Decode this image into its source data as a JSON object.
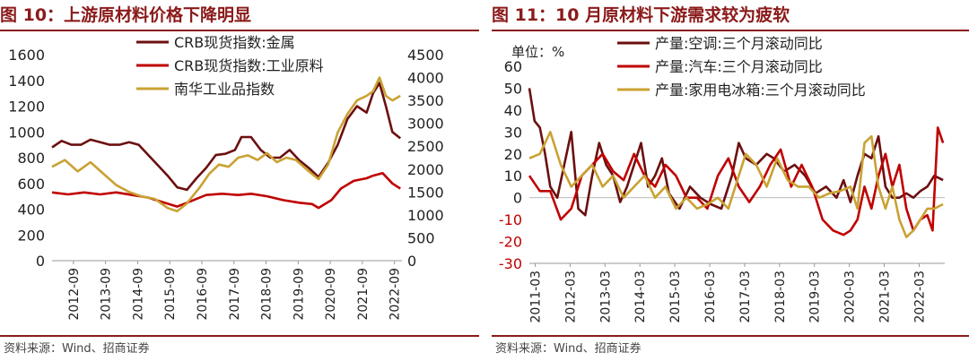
{
  "chart_data": [
    {
      "type": "line",
      "title": "图 10：上游原材料价格下降明显",
      "source": "资料来源：Wind、招商证券",
      "categories": [
        "2012-09",
        "2013-09",
        "2014-09",
        "2015-09",
        "2016-09",
        "2017-09",
        "2018-09",
        "2019-09",
        "2020-09",
        "2021-09",
        "2022-09"
      ],
      "x_range": [
        2012.0,
        2022.9
      ],
      "y_left": {
        "range": [
          0,
          1600
        ],
        "ticks": [
          "0",
          "200",
          "400",
          "600",
          "800",
          "1000",
          "1200",
          "1400",
          "1600"
        ]
      },
      "y_right": {
        "range": [
          0,
          4500
        ],
        "ticks": [
          "0",
          "500",
          "1000",
          "1500",
          "2000",
          "2500",
          "3000",
          "3500",
          "4000",
          "4500"
        ]
      },
      "legend_position": "top-center",
      "series": [
        {
          "name": "CRB现货指数:金属",
          "axis": "left",
          "color": "#6b0f0f",
          "x": [
            2012.0,
            2012.3,
            2012.6,
            2012.9,
            2013.2,
            2013.5,
            2013.8,
            2014.1,
            2014.4,
            2014.7,
            2015.0,
            2015.3,
            2015.6,
            2015.9,
            2016.2,
            2016.5,
            2016.8,
            2017.1,
            2017.4,
            2017.7,
            2017.9,
            2018.2,
            2018.5,
            2018.8,
            2019.1,
            2019.4,
            2019.7,
            2020.0,
            2020.3,
            2020.6,
            2020.9,
            2021.2,
            2021.5,
            2021.8,
            2022.0,
            2022.2,
            2022.4,
            2022.6,
            2022.85
          ],
          "values": [
            880,
            930,
            900,
            900,
            940,
            920,
            900,
            900,
            920,
            900,
            820,
            740,
            660,
            570,
            550,
            640,
            720,
            820,
            830,
            860,
            960,
            960,
            860,
            800,
            800,
            860,
            780,
            720,
            650,
            760,
            900,
            1100,
            1200,
            1150,
            1300,
            1380,
            1200,
            1000,
            950
          ]
        },
        {
          "name": "CRB现货指数:工业原料",
          "axis": "left",
          "color": "#c00000",
          "x": [
            2012.0,
            2012.5,
            2013.0,
            2013.5,
            2014.0,
            2014.5,
            2015.0,
            2015.5,
            2015.9,
            2016.3,
            2016.8,
            2017.3,
            2017.8,
            2018.2,
            2018.7,
            2019.2,
            2019.7,
            2020.1,
            2020.3,
            2020.7,
            2021.0,
            2021.4,
            2021.8,
            2022.0,
            2022.3,
            2022.6,
            2022.85
          ],
          "values": [
            530,
            515,
            530,
            515,
            530,
            510,
            490,
            450,
            420,
            460,
            510,
            520,
            510,
            520,
            500,
            470,
            450,
            440,
            410,
            470,
            560,
            620,
            640,
            660,
            680,
            600,
            560
          ]
        },
        {
          "name": "南华工业品指数",
          "axis": "right",
          "color": "#c9a233",
          "x": [
            2012.0,
            2012.4,
            2012.8,
            2013.2,
            2013.6,
            2014.0,
            2014.4,
            2014.8,
            2015.2,
            2015.6,
            2015.9,
            2016.2,
            2016.6,
            2016.9,
            2017.2,
            2017.5,
            2017.8,
            2018.1,
            2018.4,
            2018.7,
            2019.0,
            2019.3,
            2019.6,
            2020.0,
            2020.3,
            2020.6,
            2020.9,
            2021.2,
            2021.5,
            2021.8,
            2022.0,
            2022.2,
            2022.4,
            2022.6,
            2022.85
          ],
          "values": [
            2050,
            2200,
            1950,
            2150,
            1900,
            1650,
            1500,
            1400,
            1350,
            1150,
            1080,
            1250,
            1600,
            1900,
            2100,
            2050,
            2250,
            2300,
            2200,
            2350,
            2150,
            2250,
            2200,
            1950,
            1780,
            2100,
            2800,
            3200,
            3500,
            3600,
            3700,
            4000,
            3600,
            3500,
            3600
          ]
        }
      ]
    },
    {
      "type": "line",
      "title": "图 11：10 月原材料下游需求较为疲软",
      "source": "资料来源：Wind、招商证券",
      "unit_label": "单位：%",
      "categories": [
        "2011-03",
        "2012-03",
        "2013-03",
        "2014-03",
        "2015-03",
        "2016-03",
        "2017-03",
        "2018-03",
        "2019-03",
        "2020-03",
        "2021-03",
        "2022-03"
      ],
      "x_range": [
        2011.0,
        2022.9
      ],
      "y_left": {
        "range": [
          -30,
          60
        ],
        "ticks": [
          "-30",
          "-20",
          "-10",
          "0",
          "10",
          "20",
          "30",
          "40",
          "50",
          "60"
        ]
      },
      "legend_position": "top-center",
      "series": [
        {
          "name": "产量:空调:三个月滚动同比",
          "color": "#6b0f0f",
          "x": [
            2011.0,
            2011.15,
            2011.3,
            2011.45,
            2011.6,
            2011.8,
            2012.0,
            2012.2,
            2012.4,
            2012.6,
            2012.8,
            2013.0,
            2013.2,
            2013.4,
            2013.6,
            2013.8,
            2014.0,
            2014.2,
            2014.4,
            2014.6,
            2014.8,
            2015.0,
            2015.3,
            2015.6,
            2015.9,
            2016.2,
            2016.5,
            2016.8,
            2017.0,
            2017.2,
            2017.5,
            2017.8,
            2018.0,
            2018.3,
            2018.6,
            2018.9,
            2019.2,
            2019.5,
            2019.8,
            2020.0,
            2020.2,
            2020.4,
            2020.6,
            2020.8,
            2021.0,
            2021.2,
            2021.4,
            2021.6,
            2021.8,
            2022.0,
            2022.2,
            2022.4,
            2022.6,
            2022.85
          ],
          "values": [
            50,
            35,
            32,
            20,
            5,
            0,
            15,
            30,
            -5,
            -8,
            10,
            25,
            15,
            10,
            -2,
            5,
            15,
            25,
            5,
            10,
            18,
            2,
            -5,
            5,
            0,
            -3,
            -5,
            10,
            25,
            18,
            15,
            20,
            18,
            12,
            15,
            10,
            2,
            5,
            0,
            8,
            -2,
            10,
            20,
            18,
            28,
            5,
            0,
            0,
            2,
            0,
            3,
            5,
            10,
            8
          ]
        },
        {
          "name": "产量:汽车:三个月滚动同比",
          "color": "#c00000",
          "x": [
            2011.0,
            2011.3,
            2011.6,
            2011.9,
            2012.2,
            2012.5,
            2012.8,
            2013.1,
            2013.4,
            2013.7,
            2014.0,
            2014.3,
            2014.6,
            2014.9,
            2015.2,
            2015.5,
            2015.8,
            2016.1,
            2016.4,
            2016.7,
            2017.0,
            2017.3,
            2017.6,
            2017.9,
            2018.2,
            2018.5,
            2018.8,
            2019.1,
            2019.4,
            2019.7,
            2020.0,
            2020.2,
            2020.4,
            2020.6,
            2020.8,
            2021.0,
            2021.2,
            2021.4,
            2021.6,
            2021.8,
            2022.0,
            2022.2,
            2022.4,
            2022.55,
            2022.7,
            2022.85
          ],
          "values": [
            10,
            3,
            3,
            -10,
            -5,
            10,
            15,
            20,
            12,
            8,
            20,
            10,
            5,
            15,
            10,
            0,
            0,
            -5,
            10,
            18,
            5,
            -2,
            5,
            15,
            22,
            5,
            15,
            5,
            -10,
            -15,
            -17,
            -15,
            -10,
            5,
            -5,
            10,
            20,
            5,
            15,
            -5,
            -15,
            -10,
            -8,
            -15,
            32,
            25
          ]
        },
        {
          "name": "产量:家用电冰箱:三个月滚动同比",
          "color": "#c9a233",
          "x": [
            2011.0,
            2011.3,
            2011.6,
            2011.9,
            2012.2,
            2012.5,
            2012.8,
            2013.1,
            2013.4,
            2013.7,
            2014.0,
            2014.3,
            2014.6,
            2014.9,
            2015.2,
            2015.5,
            2015.8,
            2016.1,
            2016.4,
            2016.7,
            2017.0,
            2017.2,
            2017.5,
            2017.8,
            2018.1,
            2018.4,
            2018.7,
            2019.0,
            2019.3,
            2019.6,
            2019.9,
            2020.2,
            2020.4,
            2020.6,
            2020.8,
            2021.0,
            2021.2,
            2021.4,
            2021.6,
            2021.8,
            2022.0,
            2022.2,
            2022.4,
            2022.6,
            2022.85
          ],
          "values": [
            18,
            20,
            30,
            15,
            5,
            10,
            15,
            5,
            10,
            0,
            5,
            10,
            0,
            5,
            -5,
            0,
            -5,
            -3,
            0,
            -5,
            10,
            20,
            15,
            5,
            18,
            8,
            5,
            5,
            0,
            2,
            3,
            5,
            -5,
            25,
            28,
            5,
            -5,
            5,
            -10,
            -18,
            -15,
            -10,
            -5,
            -5,
            -3
          ]
        }
      ]
    }
  ]
}
